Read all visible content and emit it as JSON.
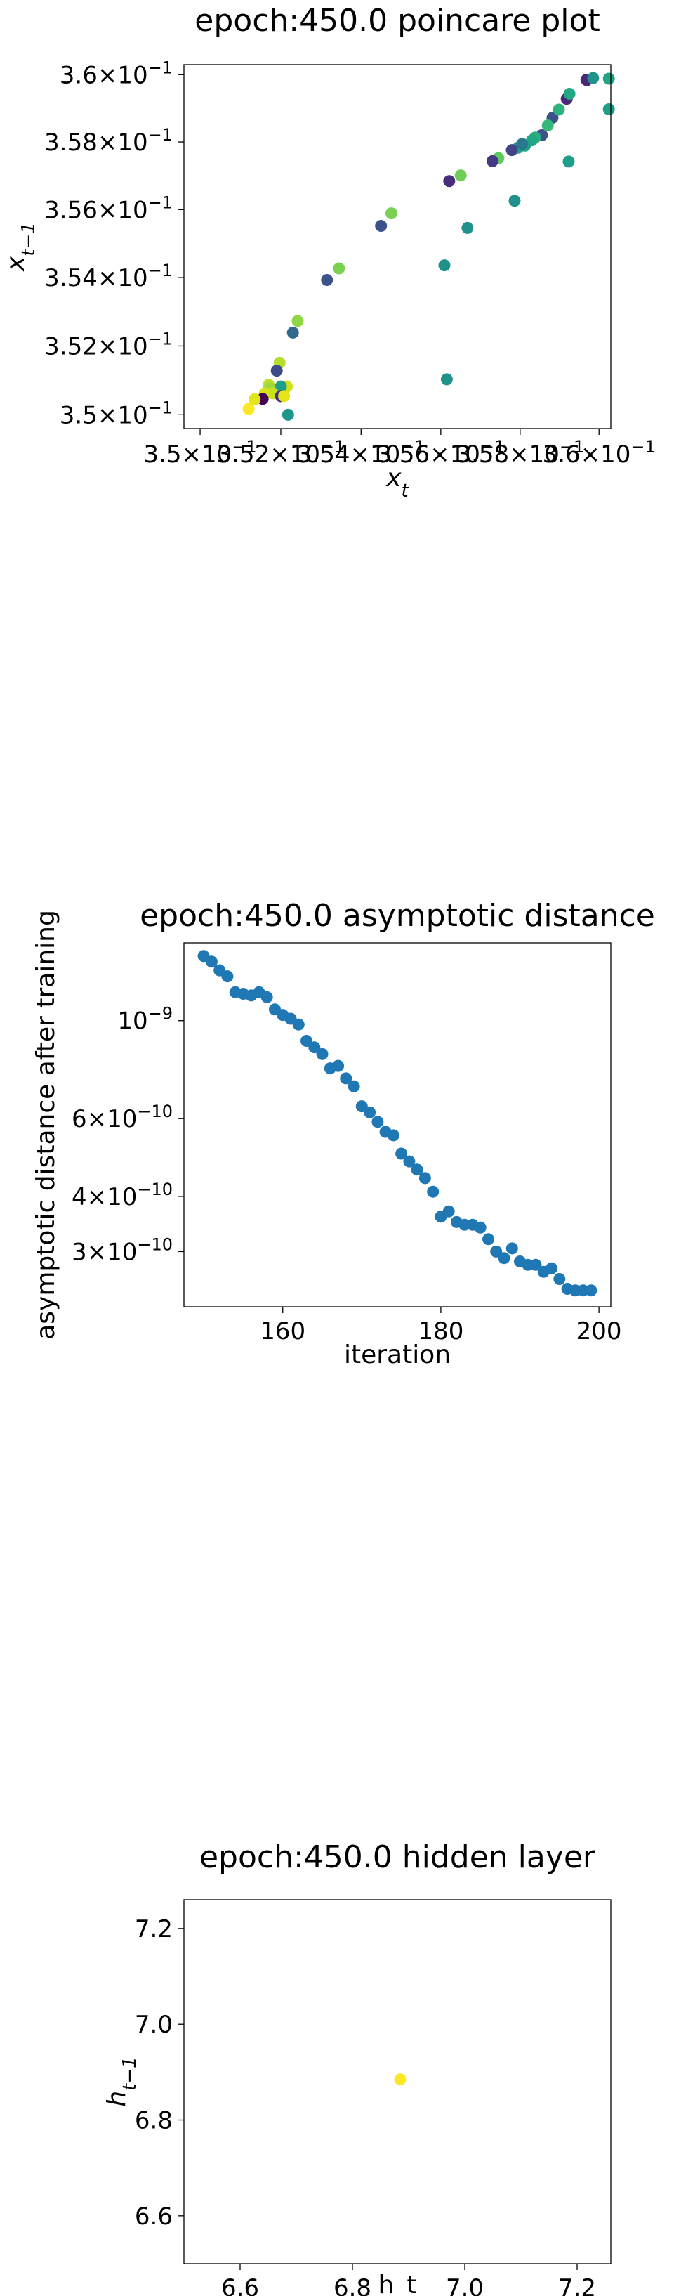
{
  "chart_data": [
    {
      "type": "scatter",
      "title": "epoch:450.0 poincare plot",
      "xlabel": "x_t",
      "ylabel": "x_{t-1}",
      "xscale": "log",
      "yscale": "log",
      "xlim": [
        0.3496,
        0.3603
      ],
      "ylim": [
        0.3496,
        0.3603
      ],
      "xticks": [
        0.35,
        0.352,
        0.354,
        0.356,
        0.358,
        0.36
      ],
      "xtick_labels": [
        {
          "mantissa": "3.5",
          "base": "10",
          "exp": "−1"
        },
        {
          "mantissa": "3.52",
          "base": "10",
          "exp": "−1"
        },
        {
          "mantissa": "3.54",
          "base": "10",
          "exp": "−1"
        },
        {
          "mantissa": "3.56",
          "base": "10",
          "exp": "−1"
        },
        {
          "mantissa": "3.58",
          "base": "10",
          "exp": "−1"
        },
        {
          "mantissa": "3.6",
          "base": "10",
          "exp": "−1"
        }
      ],
      "yticks": [
        0.35,
        0.352,
        0.354,
        0.356,
        0.358,
        0.36
      ],
      "ytick_labels": [
        {
          "mantissa": "3.5",
          "base": "10",
          "exp": "−1"
        },
        {
          "mantissa": "3.52",
          "base": "10",
          "exp": "−1"
        },
        {
          "mantissa": "3.54",
          "base": "10",
          "exp": "−1"
        },
        {
          "mantissa": "3.56",
          "base": "10",
          "exp": "−1"
        },
        {
          "mantissa": "3.58",
          "base": "10",
          "exp": "−1"
        },
        {
          "mantissa": "3.6",
          "base": "10",
          "exp": "−1"
        }
      ],
      "colormap": "viridis",
      "points": [
        {
          "x": 0.35855,
          "y": 0.3582,
          "c": "#3b528b"
        },
        {
          "x": 0.35882,
          "y": 0.35872,
          "c": "#3b528b"
        },
        {
          "x": 0.35918,
          "y": 0.35928,
          "c": "#482878"
        },
        {
          "x": 0.35969,
          "y": 0.35984,
          "c": "#440154"
        },
        {
          "x": 0.35968,
          "y": 0.35985,
          "c": "#482878"
        },
        {
          "x": 0.35985,
          "y": 0.3599,
          "c": "#21918c"
        },
        {
          "x": 0.36025,
          "y": 0.35988,
          "c": "#21a685"
        },
        {
          "x": 0.35925,
          "y": 0.35943,
          "c": "#22a884"
        },
        {
          "x": 0.36025,
          "y": 0.35897,
          "c": "#1f9e89"
        },
        {
          "x": 0.35923,
          "y": 0.35742,
          "c": "#1f9e89"
        },
        {
          "x": 0.35898,
          "y": 0.35896,
          "c": "#2eb37c"
        },
        {
          "x": 0.3587,
          "y": 0.35849,
          "c": "#35b779"
        },
        {
          "x": 0.35838,
          "y": 0.35813,
          "c": "#29af7f"
        },
        {
          "x": 0.3583,
          "y": 0.35805,
          "c": "#22a884"
        },
        {
          "x": 0.35812,
          "y": 0.35789,
          "c": "#1fa187"
        },
        {
          "x": 0.35795,
          "y": 0.35783,
          "c": "#1f9e89"
        },
        {
          "x": 0.35805,
          "y": 0.35794,
          "c": "#2a788e"
        },
        {
          "x": 0.35779,
          "y": 0.35776,
          "c": "#414487"
        },
        {
          "x": 0.35745,
          "y": 0.35752,
          "c": "#5ec962"
        },
        {
          "x": 0.3573,
          "y": 0.35743,
          "c": "#443983"
        },
        {
          "x": 0.35786,
          "y": 0.35626,
          "c": "#21918c"
        },
        {
          "x": 0.3565,
          "y": 0.35701,
          "c": "#6ece58"
        },
        {
          "x": 0.35621,
          "y": 0.35684,
          "c": "#472d7b"
        },
        {
          "x": 0.35667,
          "y": 0.35546,
          "c": "#21918c"
        },
        {
          "x": 0.35609,
          "y": 0.35436,
          "c": "#21918c"
        },
        {
          "x": 0.35476,
          "y": 0.35589,
          "c": "#7ad151"
        },
        {
          "x": 0.3545,
          "y": 0.35552,
          "c": "#3b528b"
        },
        {
          "x": 0.35345,
          "y": 0.35427,
          "c": "#7ad151"
        },
        {
          "x": 0.35315,
          "y": 0.35393,
          "c": "#3b528b"
        },
        {
          "x": 0.35242,
          "y": 0.35273,
          "c": "#8fd744"
        },
        {
          "x": 0.3523,
          "y": 0.35239,
          "c": "#31688e"
        },
        {
          "x": 0.35197,
          "y": 0.35151,
          "c": "#b5de2b"
        },
        {
          "x": 0.3519,
          "y": 0.35128,
          "c": "#3e4a89"
        },
        {
          "x": 0.35215,
          "y": 0.35082,
          "c": "#d0e11c"
        },
        {
          "x": 0.352,
          "y": 0.35082,
          "c": "#1f9e89"
        },
        {
          "x": 0.3517,
          "y": 0.35087,
          "c": "#c2df23"
        },
        {
          "x": 0.35172,
          "y": 0.35078,
          "c": "#9fda3a"
        },
        {
          "x": 0.3518,
          "y": 0.35062,
          "c": "#cae11f"
        },
        {
          "x": 0.3516,
          "y": 0.35062,
          "c": "#d8e219"
        },
        {
          "x": 0.352,
          "y": 0.35054,
          "c": "#46327e"
        },
        {
          "x": 0.35208,
          "y": 0.35054,
          "c": "#e5e419"
        },
        {
          "x": 0.35155,
          "y": 0.35046,
          "c": "#440154"
        },
        {
          "x": 0.35135,
          "y": 0.35045,
          "c": "#e2e418"
        },
        {
          "x": 0.3512,
          "y": 0.35017,
          "c": "#fde725"
        },
        {
          "x": 0.35218,
          "y": 0.35,
          "c": "#1f968b"
        },
        {
          "x": 0.35615,
          "y": 0.35103,
          "c": "#21918c"
        }
      ]
    },
    {
      "type": "scatter",
      "title": "epoch:450.0 asymptotic distance",
      "xlabel": "iteration",
      "ylabel": "asymptotic distance after training",
      "yscale": "log",
      "color": "#1f77b4",
      "xlim": [
        147.5,
        201.5
      ],
      "ylim": [
        2.25e-10,
        1.5e-09
      ],
      "xticks": [
        160,
        180,
        200
      ],
      "yticks": [
        {
          "value": 1e-09,
          "mantissa": "",
          "base": "10",
          "exp": "−9"
        },
        {
          "value": 6e-10,
          "mantissa": "6",
          "base": "10",
          "exp": "−10"
        },
        {
          "value": 4e-10,
          "mantissa": "4",
          "base": "10",
          "exp": "−10"
        },
        {
          "value": 3e-10,
          "mantissa": "3",
          "base": "10",
          "exp": "−10"
        }
      ],
      "x": [
        150,
        151,
        152,
        153,
        154,
        155,
        156,
        157,
        158,
        159,
        160,
        161,
        162,
        163,
        164,
        165,
        166,
        167,
        168,
        169,
        170,
        171,
        172,
        173,
        174,
        175,
        176,
        177,
        178,
        179,
        180,
        181,
        182,
        183,
        184,
        185,
        186,
        187,
        188,
        189,
        190,
        191,
        192,
        193,
        194,
        195,
        196,
        197,
        198,
        199
      ],
      "y": [
        1.4e-09,
        1.36e-09,
        1.3e-09,
        1.26e-09,
        1.16e-09,
        1.15e-09,
        1.14e-09,
        1.16e-09,
        1.13e-09,
        1.06e-09,
        1.03e-09,
        1.01e-09,
        9.8e-10,
        9e-10,
        8.7e-10,
        8.4e-10,
        7.8e-10,
        7.9e-10,
        7.4e-10,
        7.1e-10,
        6.4e-10,
        6.2e-10,
        5.9e-10,
        5.6e-10,
        5.5e-10,
        5e-10,
        4.8e-10,
        4.6e-10,
        4.4e-10,
        4.1e-10,
        3.6e-10,
        3.7e-10,
        3.5e-10,
        3.45e-10,
        3.45e-10,
        3.4e-10,
        3.2e-10,
        3e-10,
        2.9e-10,
        3.05e-10,
        2.85e-10,
        2.8e-10,
        2.8e-10,
        2.7e-10,
        2.75e-10,
        2.6e-10,
        2.47e-10,
        2.45e-10,
        2.45e-10,
        2.45e-10
      ]
    },
    {
      "type": "scatter",
      "title": "epoch:450.0 hidden layer",
      "xlabel": "h_t",
      "ylabel": "h_{t-1}",
      "xlim": [
        6.5,
        7.26
      ],
      "ylim": [
        6.5,
        7.26
      ],
      "xticks": [
        6.6,
        6.8,
        7.0,
        7.2
      ],
      "yticks": [
        6.6,
        6.8,
        7.0,
        7.2
      ],
      "points": [
        {
          "x": 6.885,
          "y": 6.885,
          "c": "#fde725"
        }
      ]
    }
  ]
}
